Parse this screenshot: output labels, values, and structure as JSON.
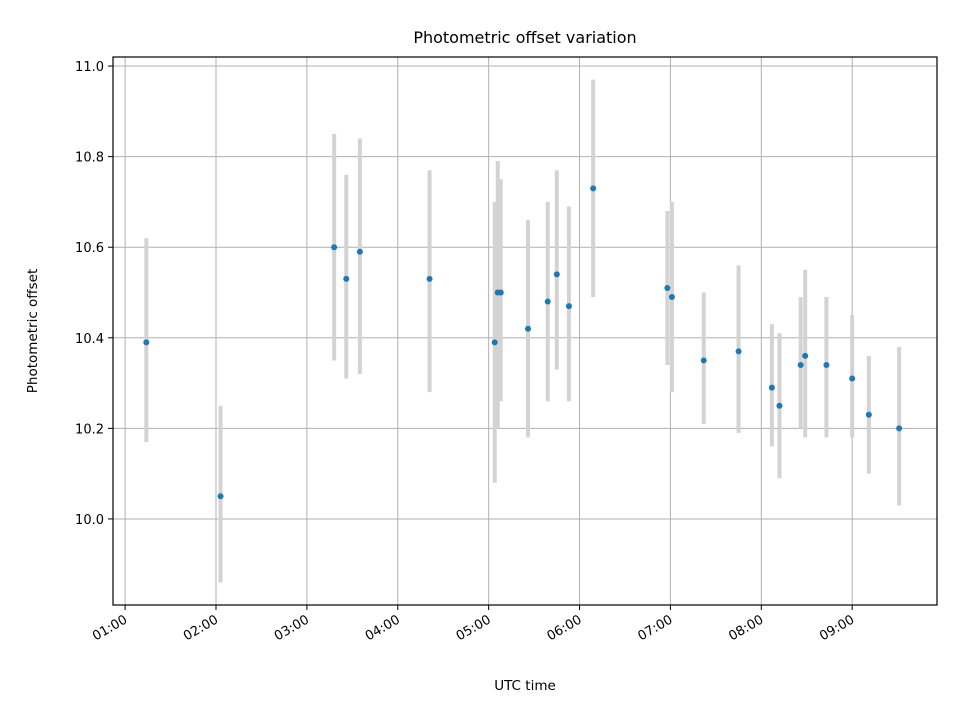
{
  "chart_data": {
    "type": "scatter",
    "title": "Photometric offset variation",
    "xlabel": "UTC time",
    "ylabel": "Photometric offset",
    "x_tick_labels": [
      "01:00",
      "02:00",
      "03:00",
      "04:00",
      "05:00",
      "06:00",
      "07:00",
      "08:00",
      "09:00"
    ],
    "y_tick_labels": [
      "10.0",
      "10.2",
      "10.4",
      "10.6",
      "10.8",
      "11.0"
    ],
    "x_ticks": [
      "01:00",
      "02:00",
      "03:00",
      "04:00",
      "05:00",
      "06:00",
      "07:00",
      "08:00",
      "09:00"
    ],
    "y_ticks": [
      10.0,
      10.2,
      10.4,
      10.6,
      10.8,
      11.0
    ],
    "xlim": [
      "00:52",
      "09:56"
    ],
    "ylim": [
      9.81,
      11.02
    ],
    "grid": true,
    "colors": {
      "point": "#1f77b4",
      "errorbar": "#d3d3d3"
    },
    "points": [
      {
        "time": "01:14",
        "value": 10.39,
        "err_low": 10.17,
        "err_high": 10.62
      },
      {
        "time": "02:03",
        "value": 10.05,
        "err_low": 9.86,
        "err_high": 10.25
      },
      {
        "time": "03:18",
        "value": 10.6,
        "err_low": 10.35,
        "err_high": 10.85
      },
      {
        "time": "03:26",
        "value": 10.53,
        "err_low": 10.31,
        "err_high": 10.76
      },
      {
        "time": "03:35",
        "value": 10.59,
        "err_low": 10.32,
        "err_high": 10.84
      },
      {
        "time": "04:21",
        "value": 10.53,
        "err_low": 10.28,
        "err_high": 10.77
      },
      {
        "time": "05:04",
        "value": 10.39,
        "err_low": 10.08,
        "err_high": 10.7
      },
      {
        "time": "05:06",
        "value": 10.5,
        "err_low": 10.2,
        "err_high": 10.79
      },
      {
        "time": "05:08",
        "value": 10.5,
        "err_low": 10.26,
        "err_high": 10.75
      },
      {
        "time": "05:26",
        "value": 10.42,
        "err_low": 10.18,
        "err_high": 10.66
      },
      {
        "time": "05:39",
        "value": 10.48,
        "err_low": 10.26,
        "err_high": 10.7
      },
      {
        "time": "05:45",
        "value": 10.54,
        "err_low": 10.33,
        "err_high": 10.77
      },
      {
        "time": "05:53",
        "value": 10.47,
        "err_low": 10.26,
        "err_high": 10.69
      },
      {
        "time": "06:09",
        "value": 10.73,
        "err_low": 10.49,
        "err_high": 10.97
      },
      {
        "time": "06:58",
        "value": 10.51,
        "err_low": 10.34,
        "err_high": 10.68
      },
      {
        "time": "07:01",
        "value": 10.49,
        "err_low": 10.28,
        "err_high": 10.7
      },
      {
        "time": "07:22",
        "value": 10.35,
        "err_low": 10.21,
        "err_high": 10.5
      },
      {
        "time": "07:45",
        "value": 10.37,
        "err_low": 10.19,
        "err_high": 10.56
      },
      {
        "time": "08:07",
        "value": 10.29,
        "err_low": 10.16,
        "err_high": 10.43
      },
      {
        "time": "08:12",
        "value": 10.25,
        "err_low": 10.09,
        "err_high": 10.41
      },
      {
        "time": "08:26",
        "value": 10.34,
        "err_low": 10.2,
        "err_high": 10.49
      },
      {
        "time": "08:29",
        "value": 10.36,
        "err_low": 10.18,
        "err_high": 10.55
      },
      {
        "time": "08:43",
        "value": 10.34,
        "err_low": 10.18,
        "err_high": 10.49
      },
      {
        "time": "09:00",
        "value": 10.31,
        "err_low": 10.18,
        "err_high": 10.45
      },
      {
        "time": "09:11",
        "value": 10.23,
        "err_low": 10.1,
        "err_high": 10.36
      },
      {
        "time": "09:31",
        "value": 10.2,
        "err_low": 10.03,
        "err_high": 10.38
      }
    ]
  }
}
